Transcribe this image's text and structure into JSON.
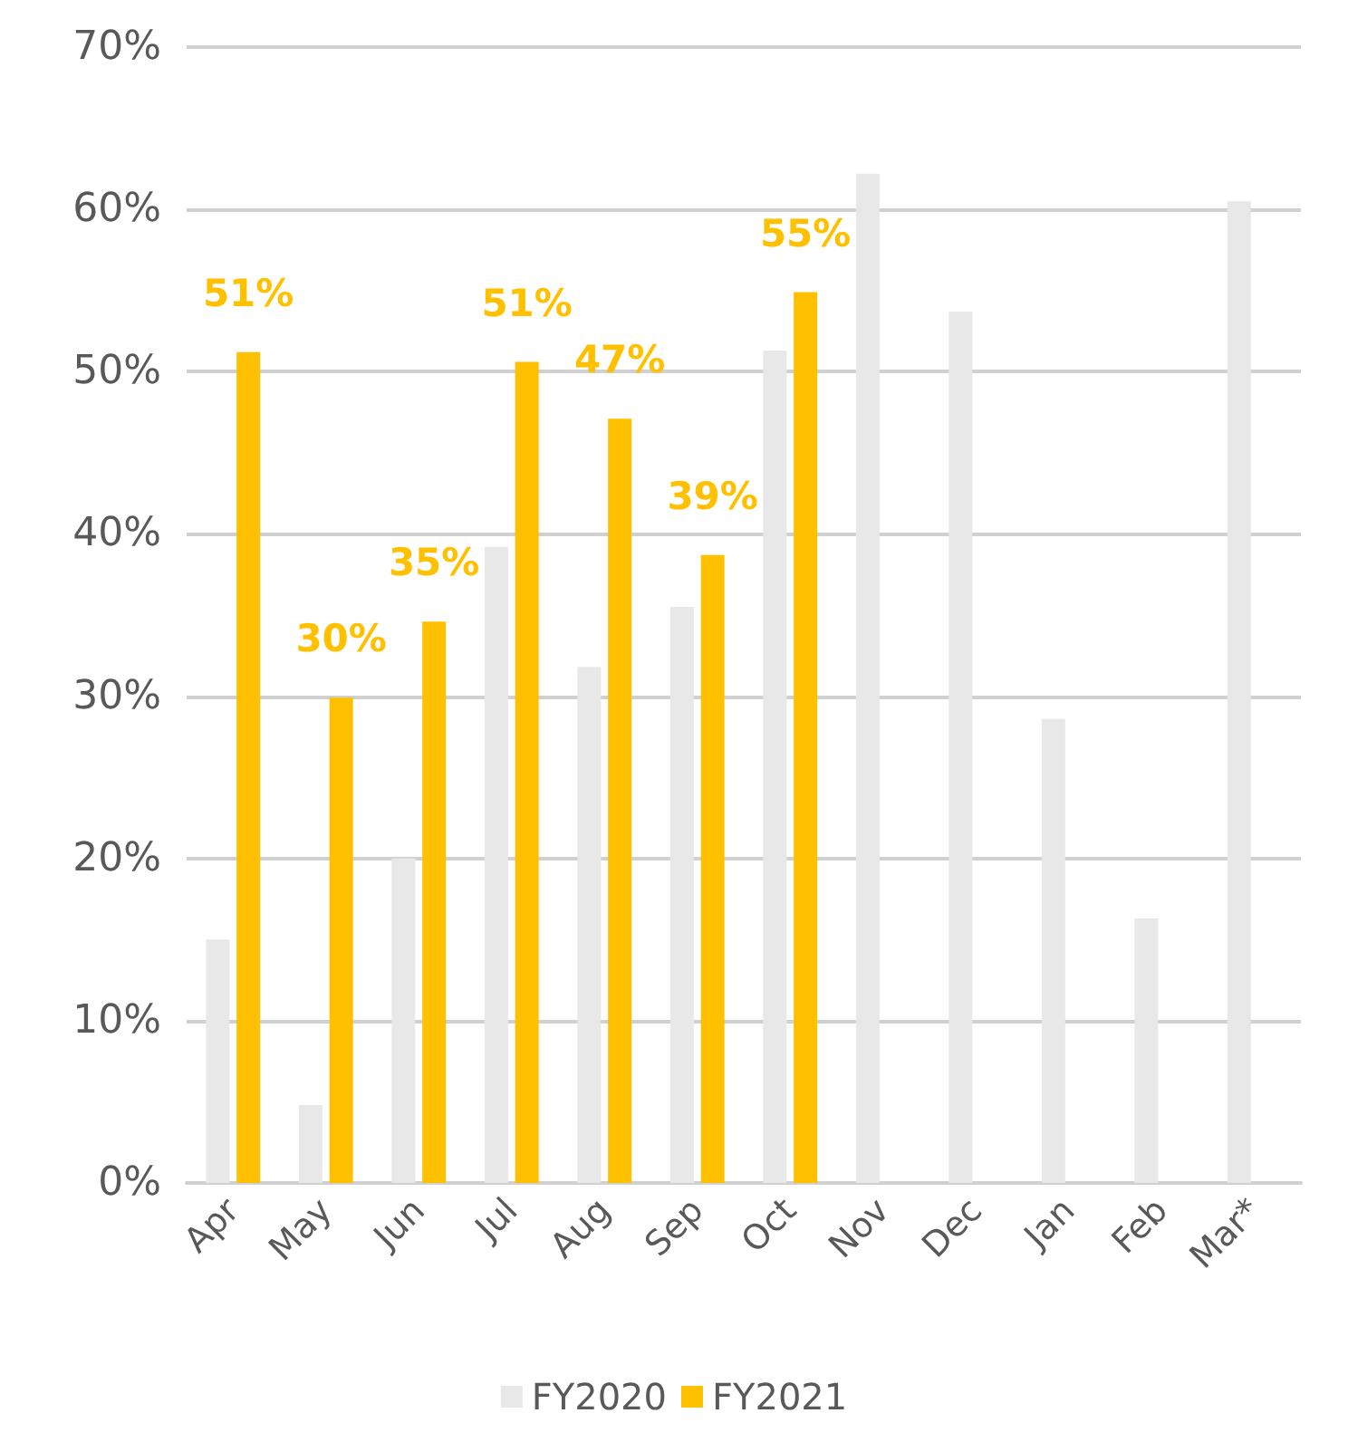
{
  "chart_data": {
    "type": "bar",
    "categories": [
      "Apr",
      "May",
      "Jun",
      "Jul",
      "Aug",
      "Sep",
      "Oct",
      "Nov",
      "Dec",
      "Jan",
      "Feb",
      "Mar*"
    ],
    "series": [
      {
        "name": "FY2020",
        "color": "#e8e8e8",
        "values": [
          15,
          4.8,
          20,
          39.2,
          31.8,
          35.5,
          51.3,
          62.2,
          53.7,
          28.6,
          16.3,
          60.5
        ]
      },
      {
        "name": "FY2021",
        "color": "#ffc000",
        "values": [
          51.2,
          29.9,
          34.6,
          50.6,
          47.1,
          38.7,
          54.9,
          null,
          null,
          null,
          null,
          null
        ],
        "value_labels": [
          "51%",
          "30%",
          "35%",
          "51%",
          "47%",
          "39%",
          "55%",
          null,
          null,
          null,
          null,
          null
        ]
      }
    ],
    "ylim": [
      0,
      70
    ],
    "yticks": [
      {
        "value": 0,
        "label": "0%"
      },
      {
        "value": 10,
        "label": "10%"
      },
      {
        "value": 20,
        "label": "20%"
      },
      {
        "value": 30,
        "label": "30%"
      },
      {
        "value": 40,
        "label": "40%"
      },
      {
        "value": 50,
        "label": "50%"
      },
      {
        "value": 60,
        "label": "60%"
      },
      {
        "value": 70,
        "label": "70%"
      }
    ],
    "grid": "y",
    "legend": "bottom"
  }
}
